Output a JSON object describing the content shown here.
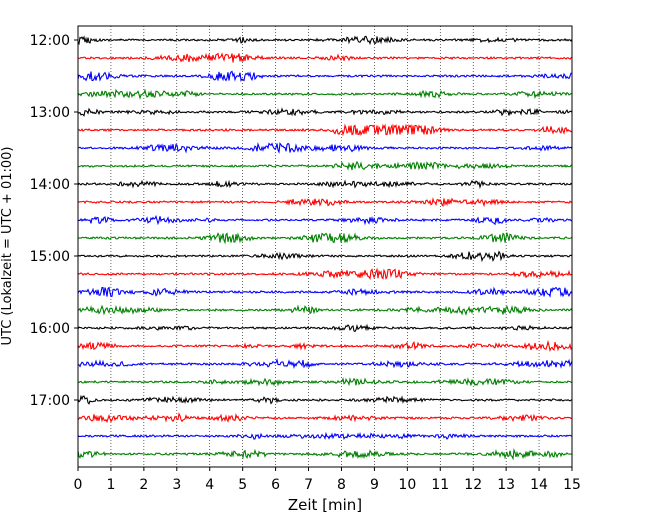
{
  "chart_data": {
    "type": "line",
    "title": "",
    "xlabel": "Zeit  [min]",
    "ylabel": "UTC (Lokalzeit = UTC + 01:00)",
    "xlim": [
      0,
      15
    ],
    "x_ticks": [
      "0",
      "1",
      "2",
      "3",
      "4",
      "5",
      "6",
      "7",
      "8",
      "9",
      "10",
      "11",
      "12",
      "13",
      "14",
      "15"
    ],
    "y_tick_labels": [
      "12:00",
      "13:00",
      "14:00",
      "15:00",
      "16:00",
      "17:00"
    ],
    "grid": "vertical dotted lines at each minute",
    "trace_colors": [
      "#000000",
      "#ff0000",
      "#0000ff",
      "#008000"
    ],
    "trace_start_times": [
      "12:00",
      "12:15",
      "12:30",
      "12:45",
      "13:00",
      "13:15",
      "13:30",
      "13:45",
      "14:00",
      "14:15",
      "14:30",
      "14:45",
      "15:00",
      "15:15",
      "15:30",
      "15:45",
      "16:00",
      "16:15",
      "16:30",
      "16:45",
      "17:00",
      "17:15",
      "17:30",
      "17:45"
    ],
    "trace_minutes": 15
  }
}
